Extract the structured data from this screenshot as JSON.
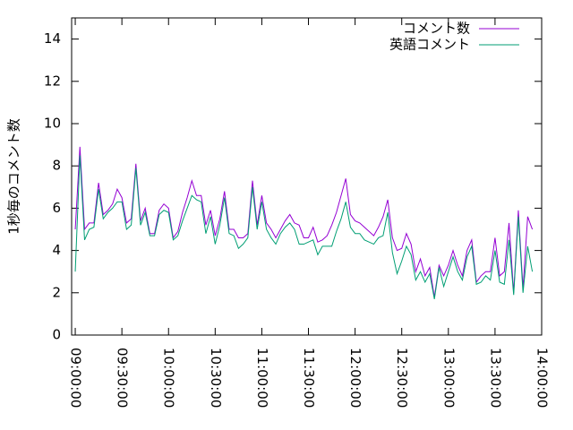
{
  "chart_data": {
    "type": "line",
    "ylabel": "1秒毎のコメント数",
    "x": [
      "09:00:00",
      "09:03:00",
      "09:06:00",
      "09:09:00",
      "09:12:00",
      "09:15:00",
      "09:18:00",
      "09:21:00",
      "09:24:00",
      "09:27:00",
      "09:30:00",
      "09:33:00",
      "09:36:00",
      "09:39:00",
      "09:42:00",
      "09:45:00",
      "09:48:00",
      "09:51:00",
      "09:54:00",
      "09:57:00",
      "10:00:00",
      "10:03:00",
      "10:06:00",
      "10:09:00",
      "10:12:00",
      "10:15:00",
      "10:18:00",
      "10:21:00",
      "10:24:00",
      "10:27:00",
      "10:30:00",
      "10:33:00",
      "10:36:00",
      "10:39:00",
      "10:42:00",
      "10:45:00",
      "10:48:00",
      "10:51:00",
      "10:54:00",
      "10:57:00",
      "11:00:00",
      "11:03:00",
      "11:06:00",
      "11:09:00",
      "11:12:00",
      "11:15:00",
      "11:18:00",
      "11:21:00",
      "11:24:00",
      "11:27:00",
      "11:30:00",
      "11:33:00",
      "11:36:00",
      "11:39:00",
      "11:42:00",
      "11:45:00",
      "11:48:00",
      "11:51:00",
      "11:54:00",
      "11:57:00",
      "12:00:00",
      "12:03:00",
      "12:06:00",
      "12:09:00",
      "12:12:00",
      "12:15:00",
      "12:18:00",
      "12:21:00",
      "12:24:00",
      "12:27:00",
      "12:30:00",
      "12:33:00",
      "12:36:00",
      "12:39:00",
      "12:42:00",
      "12:45:00",
      "12:48:00",
      "12:51:00",
      "12:54:00",
      "12:57:00",
      "13:00:00",
      "13:03:00",
      "13:06:00",
      "13:09:00",
      "13:12:00",
      "13:15:00",
      "13:18:00",
      "13:21:00",
      "13:24:00",
      "13:27:00",
      "13:30:00",
      "13:33:00",
      "13:36:00",
      "13:39:00",
      "13:42:00",
      "13:45:00",
      "13:48:00",
      "13:51:00",
      "13:54:00"
    ],
    "series": [
      {
        "name": "コメント数",
        "color": "#9400d3",
        "values": [
          5.0,
          8.9,
          5.0,
          5.3,
          5.3,
          7.2,
          5.7,
          5.9,
          6.2,
          6.9,
          6.5,
          5.3,
          5.5,
          8.1,
          5.4,
          6.0,
          4.8,
          4.8,
          5.9,
          6.2,
          6.0,
          4.6,
          4.9,
          5.8,
          6.5,
          7.3,
          6.6,
          6.6,
          5.2,
          5.9,
          4.7,
          5.5,
          6.8,
          5.0,
          5.0,
          4.6,
          4.6,
          4.8,
          7.3,
          5.2,
          6.6,
          5.3,
          5.0,
          4.6,
          5.0,
          5.4,
          5.7,
          5.3,
          5.2,
          4.6,
          4.6,
          5.1,
          4.4,
          4.5,
          4.7,
          5.2,
          5.8,
          6.6,
          7.4,
          5.7,
          5.4,
          5.3,
          5.1,
          4.9,
          4.7,
          5.1,
          5.6,
          6.4,
          4.6,
          4.0,
          4.1,
          4.8,
          4.3,
          3.0,
          3.6,
          2.8,
          3.2,
          1.8,
          3.3,
          2.8,
          3.3,
          4.0,
          3.3,
          2.8,
          4.0,
          4.5,
          2.5,
          2.8,
          3.0,
          3.0,
          4.6,
          2.8,
          3.0,
          5.3,
          2.0,
          5.9,
          2.2,
          5.6,
          5.0
        ]
      },
      {
        "name": "英語コメント",
        "color": "#009e73",
        "values": [
          3.0,
          8.5,
          4.5,
          5.0,
          5.1,
          6.9,
          5.5,
          5.8,
          6.0,
          6.3,
          6.3,
          5.0,
          5.2,
          7.9,
          5.2,
          5.8,
          4.7,
          4.7,
          5.7,
          5.9,
          5.8,
          4.5,
          4.7,
          5.4,
          6.0,
          6.6,
          6.4,
          6.3,
          4.8,
          5.6,
          4.3,
          5.2,
          6.5,
          4.8,
          4.7,
          4.1,
          4.3,
          4.6,
          7.0,
          5.0,
          6.3,
          5.0,
          4.6,
          4.3,
          4.8,
          5.1,
          5.3,
          5.0,
          4.3,
          4.3,
          4.4,
          4.5,
          3.8,
          4.2,
          4.2,
          4.2,
          4.9,
          5.5,
          6.3,
          5.1,
          4.8,
          4.8,
          4.5,
          4.4,
          4.3,
          4.6,
          4.7,
          5.8,
          3.9,
          2.9,
          3.5,
          4.2,
          3.8,
          2.6,
          3.0,
          2.5,
          2.9,
          1.7,
          3.2,
          2.3,
          3.0,
          3.7,
          3.0,
          2.6,
          3.7,
          4.2,
          2.4,
          2.5,
          2.8,
          2.6,
          4.0,
          2.5,
          2.4,
          4.5,
          1.9,
          5.6,
          2.0,
          4.2,
          3.0
        ]
      }
    ],
    "xlim": [
      "08:57:40",
      "14:00:00"
    ],
    "xticks": [
      "09:00:00",
      "09:30:00",
      "10:00:00",
      "10:30:00",
      "11:00:00",
      "11:30:00",
      "12:00:00",
      "12:30:00",
      "13:00:00",
      "13:30:00",
      "14:00:00"
    ],
    "ylim": [
      0,
      15
    ],
    "yticks": [
      0,
      2,
      4,
      6,
      8,
      10,
      12,
      14
    ],
    "legend": "top-right"
  }
}
